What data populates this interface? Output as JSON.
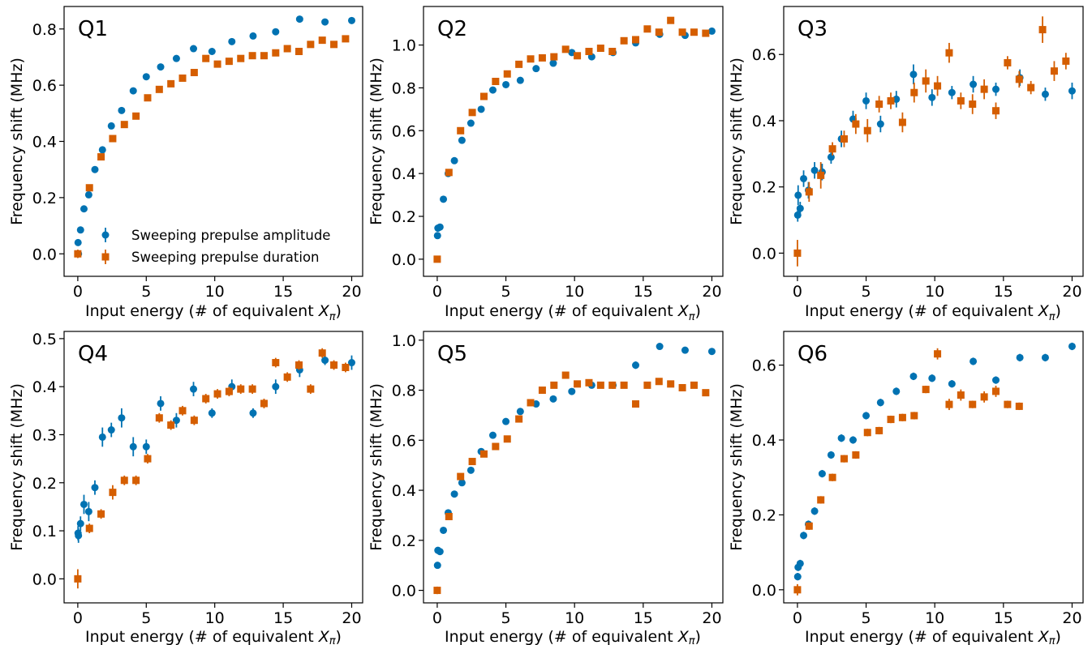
{
  "colors": {
    "amplitude": "#0072B2",
    "duration": "#D55E00"
  },
  "chart_data": [
    {
      "type": "scatter",
      "title": "Q1",
      "xlabel": "Input energy (# of equivalent X_π)",
      "ylabel": "Frequency shift (MHz)",
      "xlim": [
        -1,
        20.8
      ],
      "ylim": [
        -0.08,
        0.88
      ],
      "xticks": [
        0,
        5,
        10,
        15,
        20
      ],
      "yticks": [
        0.0,
        0.2,
        0.4,
        0.6,
        0.8
      ],
      "legend": "lower-right",
      "series": [
        {
          "name": "Sweeping prepulse amplitude",
          "marker": "circle",
          "x": [
            0.02,
            0.05,
            0.2,
            0.45,
            0.8,
            1.25,
            1.8,
            2.45,
            3.2,
            4.05,
            5.0,
            6.05,
            7.2,
            8.45,
            9.8,
            11.25,
            12.8,
            14.45,
            16.2,
            18.05,
            20.0
          ],
          "y": [
            0.04,
            0.0,
            0.085,
            0.16,
            0.21,
            0.3,
            0.37,
            0.455,
            0.51,
            0.58,
            0.63,
            0.665,
            0.695,
            0.73,
            0.72,
            0.755,
            0.775,
            0.79,
            0.835,
            0.825,
            0.83
          ],
          "yerr": [
            0.01,
            0.01,
            0.01,
            0.01,
            0.01,
            0.01,
            0.01,
            0.01,
            0.01,
            0.01,
            0.01,
            0.01,
            0.01,
            0.01,
            0.01,
            0.01,
            0.01,
            0.01,
            0.01,
            0.01,
            0.01
          ]
        },
        {
          "name": "Sweeping prepulse duration",
          "marker": "square",
          "x": [
            0.0,
            0.85,
            1.7,
            2.55,
            3.4,
            4.25,
            5.1,
            5.95,
            6.8,
            7.65,
            8.5,
            9.35,
            10.2,
            11.05,
            11.9,
            12.75,
            13.6,
            14.45,
            15.3,
            16.15,
            17.0,
            17.85,
            18.7,
            19.55
          ],
          "y": [
            0.0,
            0.235,
            0.345,
            0.41,
            0.46,
            0.49,
            0.555,
            0.585,
            0.605,
            0.625,
            0.645,
            0.695,
            0.675,
            0.685,
            0.695,
            0.705,
            0.705,
            0.715,
            0.73,
            0.72,
            0.745,
            0.76,
            0.745,
            0.765
          ],
          "yerr": [
            0.015,
            0.01,
            0.01,
            0.01,
            0.01,
            0.01,
            0.01,
            0.01,
            0.01,
            0.01,
            0.01,
            0.01,
            0.01,
            0.01,
            0.01,
            0.01,
            0.01,
            0.01,
            0.01,
            0.01,
            0.01,
            0.01,
            0.01,
            0.01
          ]
        }
      ]
    },
    {
      "type": "scatter",
      "title": "Q2",
      "xlabel": "Input energy (# of equivalent X_π)",
      "ylabel": "Frequency shift (MHz)",
      "xlim": [
        -1,
        20.8
      ],
      "ylim": [
        -0.08,
        1.18
      ],
      "xticks": [
        0,
        5,
        10,
        15,
        20
      ],
      "yticks": [
        0.0,
        0.2,
        0.4,
        0.6,
        0.8,
        1.0
      ],
      "series": [
        {
          "name": "Sweeping prepulse amplitude",
          "marker": "circle",
          "x": [
            0.02,
            0.05,
            0.2,
            0.45,
            0.8,
            1.25,
            1.8,
            2.45,
            3.2,
            4.05,
            5.0,
            6.05,
            7.2,
            8.45,
            9.8,
            11.25,
            12.8,
            14.45,
            16.2,
            18.05,
            20.0
          ],
          "y": [
            0.11,
            0.145,
            0.15,
            0.28,
            0.4,
            0.46,
            0.555,
            0.635,
            0.7,
            0.79,
            0.815,
            0.835,
            0.89,
            0.915,
            0.965,
            0.945,
            0.965,
            1.01,
            1.05,
            1.045,
            1.065
          ],
          "yerr": [
            0.01,
            0.01,
            0.01,
            0.01,
            0.01,
            0.01,
            0.01,
            0.01,
            0.01,
            0.01,
            0.01,
            0.01,
            0.01,
            0.01,
            0.01,
            0.01,
            0.01,
            0.01,
            0.01,
            0.01,
            0.01
          ]
        },
        {
          "name": "Sweeping prepulse duration",
          "marker": "square",
          "x": [
            0.0,
            0.85,
            1.7,
            2.55,
            3.4,
            4.25,
            5.1,
            5.95,
            6.8,
            7.65,
            8.5,
            9.35,
            10.2,
            11.05,
            11.9,
            12.75,
            13.6,
            14.45,
            15.3,
            16.15,
            17.0,
            17.85,
            18.7,
            19.55
          ],
          "y": [
            0.0,
            0.405,
            0.6,
            0.685,
            0.76,
            0.83,
            0.865,
            0.91,
            0.935,
            0.94,
            0.945,
            0.98,
            0.95,
            0.97,
            0.985,
            0.97,
            1.02,
            1.025,
            1.075,
            1.06,
            1.115,
            1.06,
            1.06,
            1.055
          ],
          "yerr": [
            0.015,
            0.01,
            0.01,
            0.01,
            0.01,
            0.01,
            0.01,
            0.01,
            0.01,
            0.01,
            0.01,
            0.01,
            0.01,
            0.01,
            0.01,
            0.01,
            0.01,
            0.01,
            0.01,
            0.01,
            0.01,
            0.01,
            0.01,
            0.01
          ]
        }
      ]
    },
    {
      "type": "scatter",
      "title": "Q3",
      "xlabel": "Input energy (# of equivalent X_π)",
      "ylabel": "Frequency shift (MHz)",
      "xlim": [
        -1,
        20.8
      ],
      "ylim": [
        -0.07,
        0.745
      ],
      "xticks": [
        0,
        5,
        10,
        15,
        20
      ],
      "yticks": [
        0.0,
        0.2,
        0.4,
        0.6
      ],
      "series": [
        {
          "name": "Sweeping prepulse amplitude",
          "marker": "circle",
          "x": [
            0.02,
            0.05,
            0.2,
            0.45,
            0.8,
            1.25,
            1.8,
            2.45,
            3.2,
            4.05,
            5.0,
            6.05,
            7.2,
            8.45,
            9.8,
            11.25,
            12.8,
            14.45,
            16.2,
            18.05,
            20.0
          ],
          "y": [
            0.115,
            0.175,
            0.135,
            0.225,
            0.19,
            0.25,
            0.245,
            0.29,
            0.345,
            0.405,
            0.46,
            0.39,
            0.465,
            0.54,
            0.47,
            0.485,
            0.51,
            0.495,
            0.53,
            0.48,
            0.49
          ],
          "yerr": [
            0.02,
            0.03,
            0.02,
            0.025,
            0.025,
            0.025,
            0.025,
            0.02,
            0.025,
            0.025,
            0.025,
            0.025,
            0.025,
            0.03,
            0.025,
            0.02,
            0.025,
            0.02,
            0.025,
            0.02,
            0.025
          ]
        },
        {
          "name": "Sweeping prepulse duration",
          "marker": "square",
          "x": [
            0.0,
            0.85,
            1.7,
            2.55,
            3.4,
            4.25,
            5.1,
            5.95,
            6.8,
            7.65,
            8.5,
            9.35,
            10.2,
            11.05,
            11.9,
            12.75,
            13.6,
            14.45,
            15.3,
            16.15,
            17.0,
            17.85,
            18.7,
            19.55
          ],
          "y": [
            0.0,
            0.185,
            0.235,
            0.315,
            0.345,
            0.39,
            0.37,
            0.45,
            0.46,
            0.395,
            0.485,
            0.52,
            0.505,
            0.605,
            0.46,
            0.45,
            0.495,
            0.43,
            0.575,
            0.525,
            0.5,
            0.675,
            0.55,
            0.58
          ],
          "yerr": [
            0.04,
            0.03,
            0.04,
            0.02,
            0.025,
            0.03,
            0.035,
            0.025,
            0.025,
            0.03,
            0.03,
            0.035,
            0.03,
            0.03,
            0.025,
            0.03,
            0.03,
            0.025,
            0.02,
            0.025,
            0.02,
            0.04,
            0.03,
            0.025
          ]
        }
      ]
    },
    {
      "type": "scatter",
      "title": "Q4",
      "xlabel": "Input energy (# of equivalent X_π)",
      "ylabel": "Frequency shift (MHz)",
      "xlim": [
        -1,
        20.8
      ],
      "ylim": [
        -0.05,
        0.515
      ],
      "xticks": [
        0,
        5,
        10,
        15,
        20
      ],
      "yticks": [
        0.0,
        0.1,
        0.2,
        0.3,
        0.4,
        0.5
      ],
      "series": [
        {
          "name": "Sweeping prepulse amplitude",
          "marker": "circle",
          "x": [
            0.02,
            0.05,
            0.2,
            0.45,
            0.8,
            1.25,
            1.8,
            2.45,
            3.2,
            4.05,
            5.0,
            6.05,
            7.2,
            8.45,
            9.8,
            11.25,
            12.8,
            14.45,
            16.2,
            18.05,
            20.0
          ],
          "y": [
            0.095,
            0.09,
            0.115,
            0.155,
            0.14,
            0.19,
            0.295,
            0.31,
            0.335,
            0.275,
            0.275,
            0.365,
            0.33,
            0.395,
            0.345,
            0.4,
            0.345,
            0.4,
            0.435,
            0.455,
            0.45
          ],
          "yerr": [
            0.015,
            0.015,
            0.015,
            0.02,
            0.02,
            0.015,
            0.02,
            0.015,
            0.02,
            0.02,
            0.015,
            0.015,
            0.015,
            0.015,
            0.01,
            0.015,
            0.01,
            0.015,
            0.015,
            0.01,
            0.015
          ]
        },
        {
          "name": "Sweeping prepulse duration",
          "marker": "square",
          "x": [
            0.0,
            0.85,
            1.7,
            2.55,
            3.4,
            4.25,
            5.1,
            5.95,
            6.8,
            7.65,
            8.5,
            9.35,
            10.2,
            11.05,
            11.9,
            12.75,
            13.6,
            14.45,
            15.3,
            16.15,
            17.0,
            17.85,
            18.7,
            19.55
          ],
          "y": [
            0.0,
            0.105,
            0.135,
            0.18,
            0.205,
            0.205,
            0.25,
            0.335,
            0.32,
            0.35,
            0.33,
            0.375,
            0.385,
            0.39,
            0.395,
            0.395,
            0.365,
            0.45,
            0.42,
            0.445,
            0.395,
            0.47,
            0.445,
            0.44
          ],
          "yerr": [
            0.02,
            0.01,
            0.01,
            0.015,
            0.01,
            0.01,
            0.01,
            0.01,
            0.01,
            0.01,
            0.01,
            0.01,
            0.01,
            0.01,
            0.01,
            0.01,
            0.01,
            0.01,
            0.01,
            0.01,
            0.01,
            0.01,
            0.01,
            0.01
          ]
        }
      ]
    },
    {
      "type": "scatter",
      "title": "Q5",
      "xlabel": "Input energy (# of equivalent X_π)",
      "ylabel": "Frequency shift (MHz)",
      "xlim": [
        -1,
        20.8
      ],
      "ylim": [
        -0.05,
        1.035
      ],
      "xticks": [
        0,
        5,
        10,
        15,
        20
      ],
      "yticks": [
        0.0,
        0.2,
        0.4,
        0.6,
        0.8,
        1.0
      ],
      "series": [
        {
          "name": "Sweeping prepulse amplitude",
          "marker": "circle",
          "x": [
            0.02,
            0.05,
            0.2,
            0.45,
            0.8,
            1.25,
            1.8,
            2.45,
            3.2,
            4.05,
            5.0,
            6.05,
            7.2,
            8.45,
            9.8,
            11.25,
            12.8,
            14.45,
            16.2,
            18.05,
            20.0
          ],
          "y": [
            0.1,
            0.16,
            0.155,
            0.24,
            0.31,
            0.385,
            0.43,
            0.48,
            0.555,
            0.62,
            0.675,
            0.715,
            0.745,
            0.765,
            0.795,
            0.82,
            0.82,
            0.9,
            0.975,
            0.96,
            0.955
          ],
          "yerr": [
            0.01,
            0.01,
            0.01,
            0.01,
            0.01,
            0.01,
            0.01,
            0.01,
            0.01,
            0.01,
            0.01,
            0.01,
            0.01,
            0.01,
            0.01,
            0.01,
            0.01,
            0.015,
            0.01,
            0.01,
            0.01
          ]
        },
        {
          "name": "Sweeping prepulse duration",
          "marker": "square",
          "x": [
            0.0,
            0.85,
            1.7,
            2.55,
            3.4,
            4.25,
            5.1,
            5.95,
            6.8,
            7.65,
            8.5,
            9.35,
            10.2,
            11.05,
            11.9,
            12.75,
            13.6,
            14.45,
            15.3,
            16.15,
            17.0,
            17.85,
            18.7,
            19.55
          ],
          "y": [
            0.0,
            0.295,
            0.455,
            0.515,
            0.545,
            0.575,
            0.605,
            0.685,
            0.75,
            0.8,
            0.82,
            0.86,
            0.825,
            0.83,
            0.82,
            0.82,
            0.82,
            0.745,
            0.82,
            0.835,
            0.825,
            0.81,
            0.82,
            0.79
          ],
          "yerr": [
            0.015,
            0.01,
            0.01,
            0.01,
            0.01,
            0.01,
            0.01,
            0.01,
            0.01,
            0.01,
            0.01,
            0.01,
            0.01,
            0.01,
            0.01,
            0.01,
            0.01,
            0.01,
            0.01,
            0.01,
            0.01,
            0.01,
            0.01,
            0.01
          ]
        }
      ]
    },
    {
      "type": "scatter",
      "title": "Q6",
      "xlabel": "Input energy (# of equivalent X_π)",
      "ylabel": "Frequency shift (MHz)",
      "xlim": [
        -1,
        20.8
      ],
      "ylim": [
        -0.035,
        0.69
      ],
      "xticks": [
        0,
        5,
        10,
        15,
        20
      ],
      "yticks": [
        0.0,
        0.2,
        0.4,
        0.6
      ],
      "series": [
        {
          "name": "Sweeping prepulse amplitude",
          "marker": "circle",
          "x": [
            0.02,
            0.05,
            0.2,
            0.45,
            0.8,
            1.25,
            1.8,
            2.45,
            3.2,
            4.05,
            5.0,
            6.05,
            7.2,
            8.45,
            9.8,
            11.25,
            12.8,
            14.45,
            16.2,
            18.05,
            20.0
          ],
          "y": [
            0.035,
            0.06,
            0.07,
            0.145,
            0.175,
            0.21,
            0.31,
            0.36,
            0.405,
            0.4,
            0.465,
            0.5,
            0.53,
            0.57,
            0.565,
            0.55,
            0.61,
            0.56,
            0.62,
            0.62,
            0.65
          ],
          "yerr": [
            0.01,
            0.01,
            0.01,
            0.01,
            0.01,
            0.01,
            0.01,
            0.01,
            0.01,
            0.01,
            0.01,
            0.01,
            0.01,
            0.01,
            0.01,
            0.01,
            0.01,
            0.01,
            0.01,
            0.01,
            0.01
          ]
        },
        {
          "name": "Sweeping prepulse duration",
          "marker": "square",
          "x": [
            0.0,
            0.85,
            1.7,
            2.55,
            3.4,
            4.25,
            5.1,
            5.95,
            6.8,
            7.65,
            8.5,
            9.35,
            10.2,
            11.05,
            11.9,
            12.75,
            13.6,
            14.45,
            15.3,
            16.15
          ],
          "y": [
            0.0,
            0.17,
            0.24,
            0.3,
            0.35,
            0.36,
            0.42,
            0.425,
            0.455,
            0.46,
            0.465,
            0.535,
            0.63,
            0.495,
            0.52,
            0.495,
            0.515,
            0.53,
            0.495,
            0.49
          ],
          "yerr": [
            0.015,
            0.01,
            0.01,
            0.01,
            0.01,
            0.01,
            0.01,
            0.01,
            0.01,
            0.01,
            0.01,
            0.01,
            0.015,
            0.015,
            0.015,
            0.01,
            0.015,
            0.015,
            0.01,
            0.01
          ]
        }
      ]
    }
  ]
}
